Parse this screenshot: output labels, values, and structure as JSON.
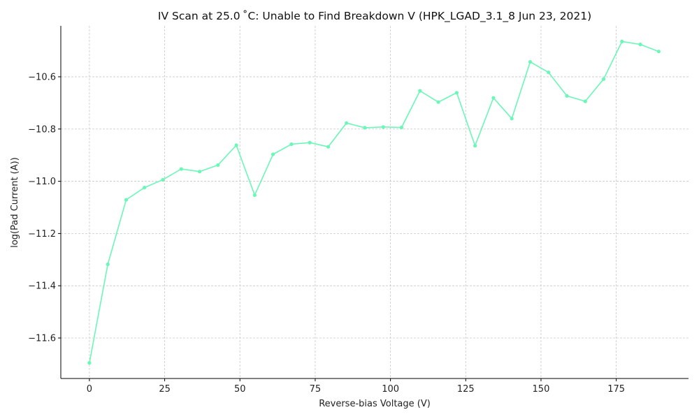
{
  "chart_data": {
    "type": "line",
    "title": "IV Scan at 25.0 ˚C: Unable to Find Breakdown V (HPK_LGAD_3.1_8 Jun 23, 2021)",
    "xlabel": "Reverse-bias Voltage (V)",
    "ylabel": "log(Pad Current (A))",
    "xlim": [
      -9.5,
      199
    ],
    "ylim": [
      -11.755,
      -10.405
    ],
    "xticks": [
      0,
      25,
      50,
      75,
      100,
      125,
      150,
      175
    ],
    "yticks": [
      -11.6,
      -11.4,
      -11.2,
      -11.0,
      -10.8,
      -10.6
    ],
    "xtick_labels": [
      "0",
      "25",
      "50",
      "75",
      "100",
      "125",
      "150",
      "175"
    ],
    "ytick_labels": [
      "−11.6",
      "−11.4",
      "−11.2",
      "−11.0",
      "−10.8",
      "−10.6"
    ],
    "grid": true,
    "color": "#6bf7b7",
    "series": [
      {
        "x": [
          0,
          6.1,
          12.2,
          18.3,
          24.4,
          30.5,
          36.6,
          42.7,
          48.8,
          54.9,
          61.0,
          67.1,
          73.2,
          79.3,
          85.4,
          91.5,
          97.6,
          103.7,
          109.8,
          115.9,
          122.0,
          128.1,
          134.2,
          140.3,
          146.4,
          152.5,
          158.6,
          164.7,
          170.8,
          176.9,
          183.0,
          189.1
        ],
        "values": [
          -11.695,
          -11.318,
          -11.071,
          -11.024,
          -10.994,
          -10.953,
          -10.963,
          -10.938,
          -10.862,
          -11.053,
          -10.897,
          -10.858,
          -10.852,
          -10.868,
          -10.777,
          -10.795,
          -10.792,
          -10.794,
          -10.654,
          -10.697,
          -10.661,
          -10.864,
          -10.681,
          -10.76,
          -10.543,
          -10.583,
          -10.673,
          -10.694,
          -10.609,
          -10.465,
          -10.476,
          -10.503
        ]
      }
    ]
  }
}
